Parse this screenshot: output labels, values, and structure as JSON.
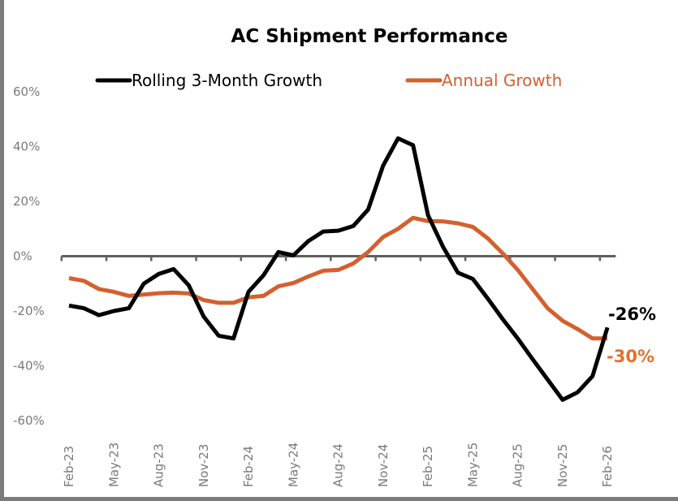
{
  "chart_data": {
    "type": "line",
    "title": "AC Shipment Performance",
    "xlabel": "",
    "ylabel": "",
    "ylim": [
      -60,
      60
    ],
    "y_ticks": [
      "60%",
      "40%",
      "20%",
      "0%",
      "-20%",
      "-40%",
      "-60%"
    ],
    "y_tick_values": [
      60,
      40,
      20,
      0,
      -20,
      -40,
      -60
    ],
    "grid": false,
    "legend_position": "top",
    "x": [
      "Feb-23",
      "Mar-23",
      "Apr-23",
      "May-23",
      "Jun-23",
      "Jul-23",
      "Aug-23",
      "Sep-23",
      "Oct-23",
      "Nov-23",
      "Dec-23",
      "Jan-24",
      "Feb-24",
      "Mar-24",
      "Apr-24",
      "May-24",
      "Jun-24",
      "Jul-24",
      "Aug-24",
      "Sep-24",
      "Oct-24",
      "Nov-24",
      "Dec-24",
      "Jan-25",
      "Feb-25",
      "Mar-25",
      "Apr-25",
      "May-25",
      "Jun-25",
      "Jul-25",
      "Aug-25",
      "Sep-25",
      "Oct-25",
      "Nov-25",
      "Dec-25",
      "Jan-26",
      "Feb-26"
    ],
    "x_tick_labels": [
      "Feb-23",
      "May-23",
      "Aug-23",
      "Nov-23",
      "Feb-24",
      "May-24",
      "Aug-24",
      "Nov-24",
      "Feb-25",
      "May-25",
      "Aug-25",
      "Nov-25",
      "Feb-26"
    ],
    "series": [
      {
        "name": "Rolling 3-Month Growth",
        "color": "#000000",
        "values": [
          -18,
          -19,
          -21.5,
          -20,
          -19,
          -10,
          -6.5,
          -4.7,
          -10.6,
          -22,
          -29,
          -30,
          -13,
          -7,
          1.5,
          0.3,
          5.5,
          9,
          9.3,
          11,
          17,
          33,
          43,
          40.5,
          15,
          3.5,
          -6,
          -8.3,
          -15.5,
          -23,
          -30,
          -37.6,
          -45,
          -52.4,
          -49.7,
          -43.8,
          -26
        ],
        "end_label": "-26%"
      },
      {
        "name": "Annual Growth",
        "color": "#D4602E",
        "values": [
          -8,
          -9,
          -12,
          -13,
          -14.5,
          -14,
          -13.5,
          -13.3,
          -13.6,
          -16,
          -17,
          -17,
          -15,
          -14.5,
          -11,
          -9.8,
          -7.4,
          -5.3,
          -5,
          -2.7,
          1.5,
          7,
          10,
          14,
          12.8,
          12.7,
          12,
          10.7,
          6.5,
          1,
          -5,
          -12,
          -19,
          -23.6,
          -26.6,
          -30,
          -30
        ],
        "end_label": "-30%",
        "end_label_color": "#E2702F"
      }
    ]
  }
}
